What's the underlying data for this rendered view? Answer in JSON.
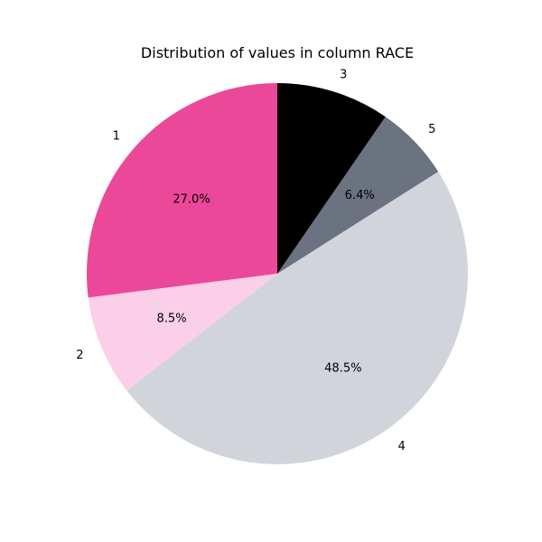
{
  "chart_data": {
    "type": "pie",
    "title": "Distribution of values in column RACE",
    "slices": [
      {
        "label": "1",
        "value": 27.0,
        "pct_label": "27.0%",
        "color": "#ec4899"
      },
      {
        "label": "2",
        "value": 8.5,
        "pct_label": "8.5%",
        "color": "#fbcfe8"
      },
      {
        "label": "4",
        "value": 48.5,
        "pct_label": "48.5%",
        "color": "#d1d5db"
      },
      {
        "label": "5",
        "value": 6.4,
        "pct_label": "6.4%",
        "color": "#6b7280"
      },
      {
        "label": "3",
        "value": 9.6,
        "pct_label": "",
        "color": "#000000"
      }
    ],
    "start_angle_deg": 90,
    "direction": "counterclockwise"
  }
}
